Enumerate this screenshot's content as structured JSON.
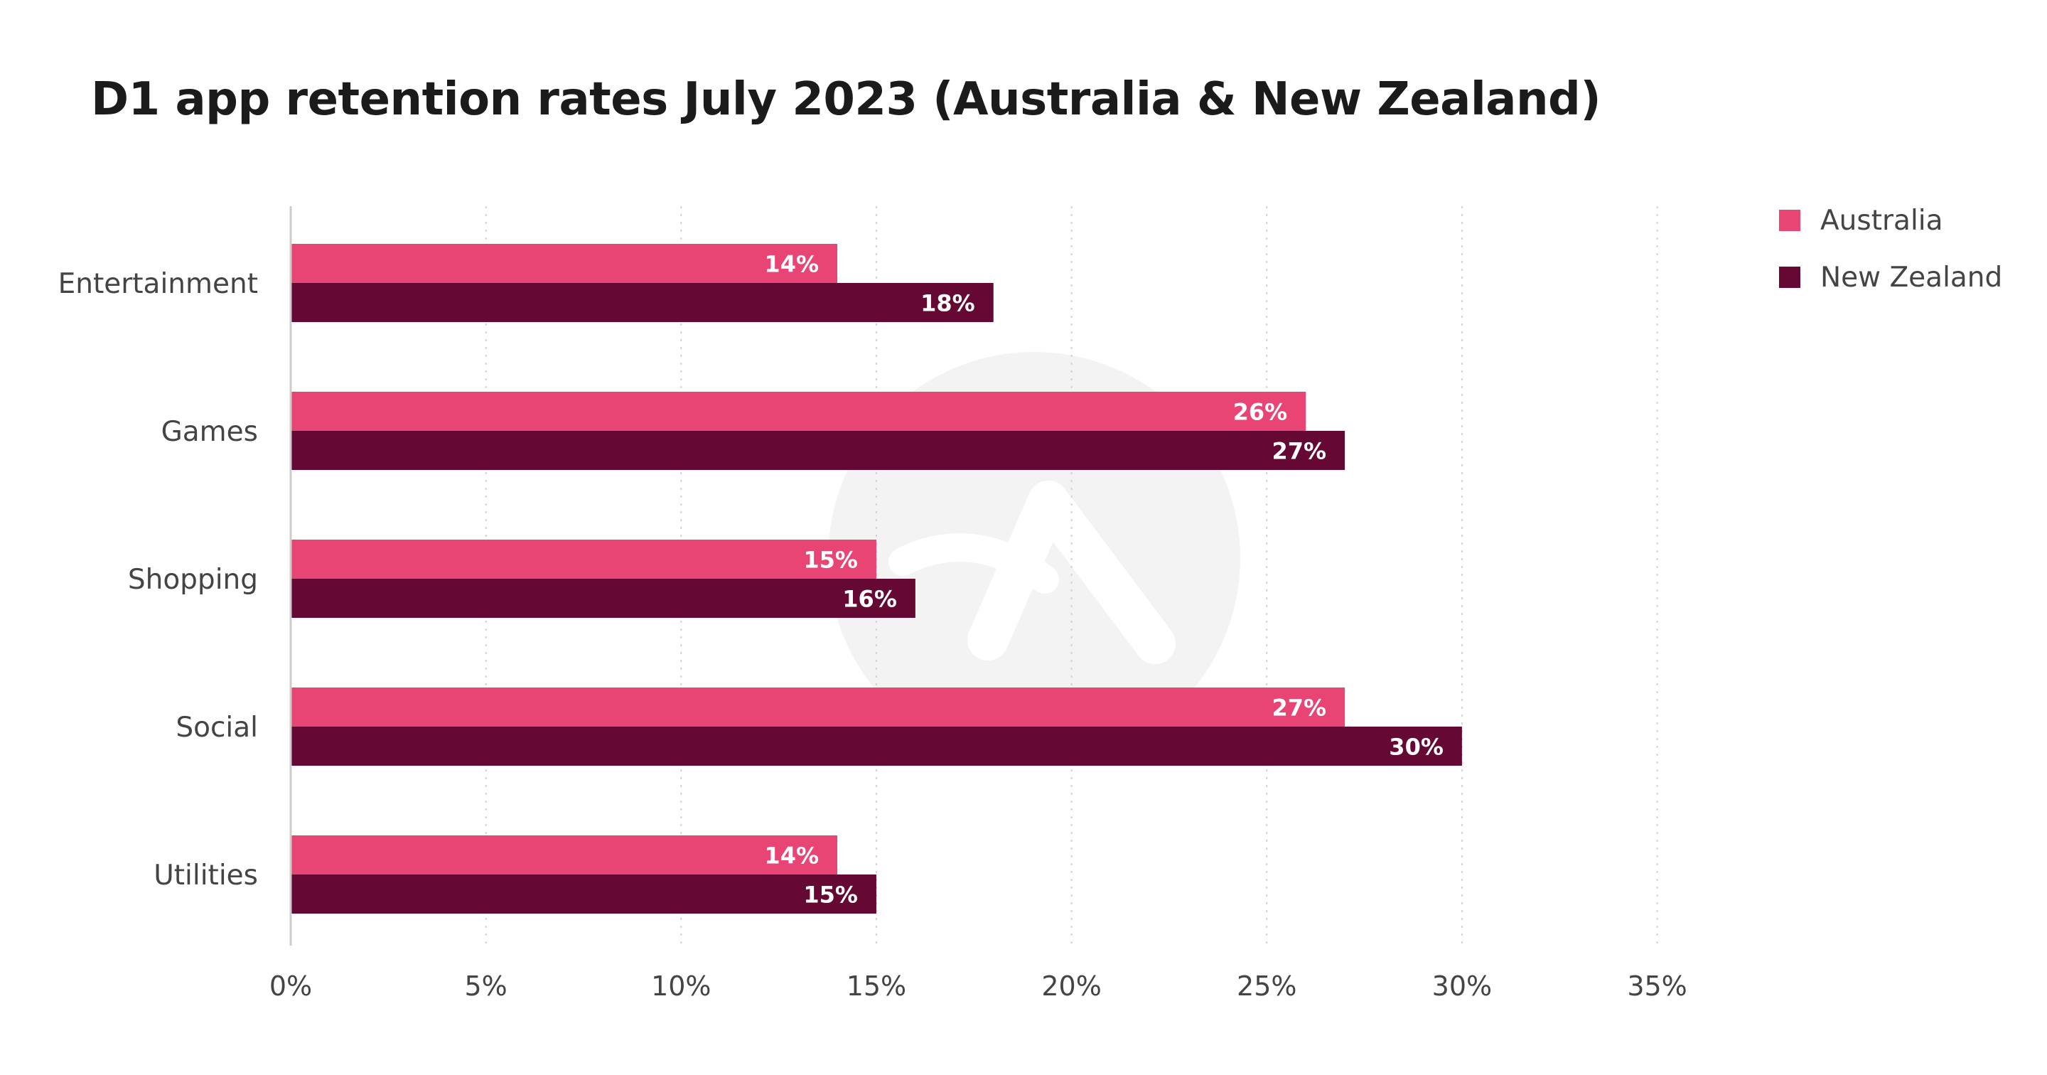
{
  "chart_data": {
    "type": "bar",
    "orientation": "horizontal",
    "title": "D1 app retention rates July 2023 (Australia & New Zealand)",
    "categories": [
      "Entertainment",
      "Games",
      "Shopping",
      "Social",
      "Utilities"
    ],
    "series": [
      {
        "name": "Australia",
        "color": "#e84474",
        "values": [
          14,
          26,
          15,
          27,
          14
        ],
        "labels": [
          "14%",
          "26%",
          "15%",
          "27%",
          "14%"
        ]
      },
      {
        "name": "New Zealand",
        "color": "#650833",
        "values": [
          18,
          27,
          16,
          30,
          15
        ],
        "labels": [
          "18%",
          "27%",
          "16%",
          "30%",
          "15%"
        ]
      }
    ],
    "xlim": [
      0,
      35
    ],
    "xticks": [
      0,
      5,
      10,
      15,
      20,
      25,
      30,
      35
    ],
    "xtick_labels": [
      "0%",
      "5%",
      "10%",
      "15%",
      "20%",
      "25%",
      "30%",
      "35%"
    ],
    "grid": "vertical dotted",
    "legend_position": "top-right",
    "data_labels": "inside bar end",
    "watermark": "logo"
  }
}
